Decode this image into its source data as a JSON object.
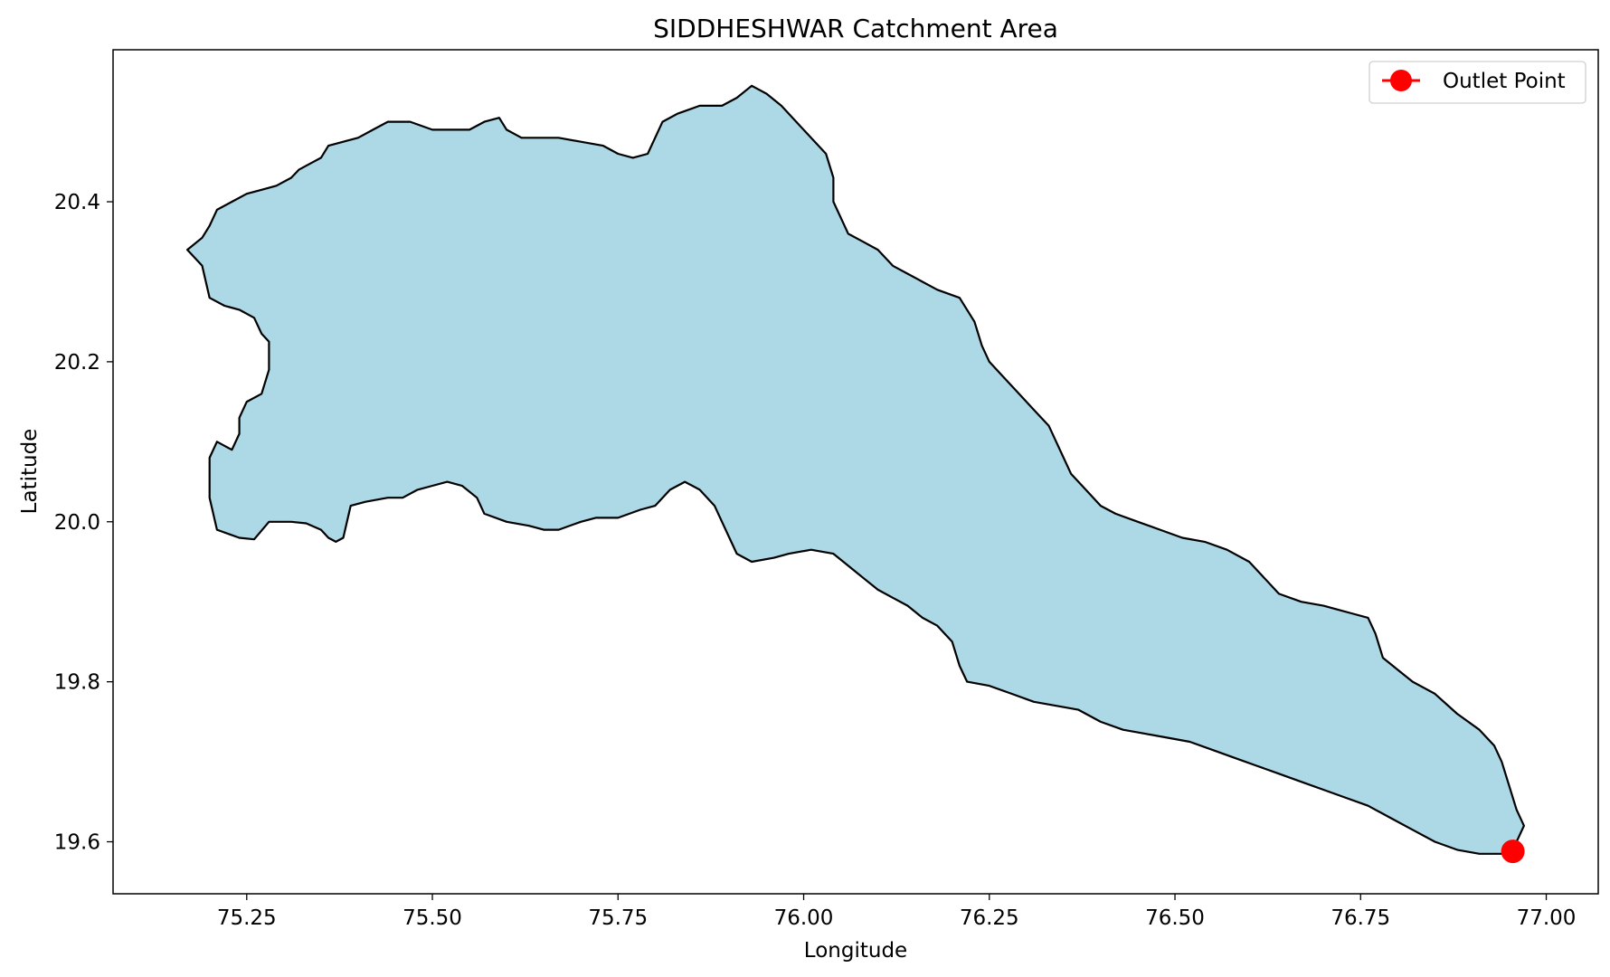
{
  "chart_data": {
    "type": "map",
    "title": "SIDDHESHWAR Catchment Area",
    "xlabel": "Longitude",
    "ylabel": "Latitude",
    "xlim": [
      75.07,
      77.07
    ],
    "ylim": [
      19.535,
      20.59
    ],
    "x_ticks": [
      75.25,
      75.5,
      75.75,
      76.0,
      76.25,
      76.5,
      76.75,
      77.0
    ],
    "x_tick_labels": [
      "75.25",
      "75.50",
      "75.75",
      "76.00",
      "76.25",
      "76.50",
      "76.75",
      "77.00"
    ],
    "y_ticks": [
      19.6,
      19.8,
      20.0,
      20.2,
      20.4
    ],
    "y_tick_labels": [
      "19.6",
      "19.8",
      "20.0",
      "20.2",
      "20.4"
    ],
    "grid": false,
    "legend_position": "top-right",
    "colors": {
      "catchment_fill": "#add8e6",
      "catchment_edge": "#000000",
      "outlet": "#ff0000"
    },
    "series": [
      {
        "name": "catchment",
        "kind": "polygon",
        "points": [
          [
            75.17,
            20.34
          ],
          [
            75.19,
            20.32
          ],
          [
            75.2,
            20.28
          ],
          [
            75.22,
            20.27
          ],
          [
            75.24,
            20.265
          ],
          [
            75.26,
            20.255
          ],
          [
            75.27,
            20.235
          ],
          [
            75.28,
            20.225
          ],
          [
            75.28,
            20.19
          ],
          [
            75.27,
            20.16
          ],
          [
            75.25,
            20.15
          ],
          [
            75.24,
            20.13
          ],
          [
            75.24,
            20.11
          ],
          [
            75.23,
            20.09
          ],
          [
            75.21,
            20.1
          ],
          [
            75.2,
            20.08
          ],
          [
            75.2,
            20.03
          ],
          [
            75.21,
            19.99
          ],
          [
            75.24,
            19.98
          ],
          [
            75.26,
            19.978
          ],
          [
            75.28,
            20.0
          ],
          [
            75.31,
            20.0
          ],
          [
            75.33,
            19.998
          ],
          [
            75.35,
            19.99
          ],
          [
            75.36,
            19.98
          ],
          [
            75.37,
            19.975
          ],
          [
            75.38,
            19.98
          ],
          [
            75.39,
            20.02
          ],
          [
            75.41,
            20.025
          ],
          [
            75.44,
            20.03
          ],
          [
            75.46,
            20.03
          ],
          [
            75.48,
            20.04
          ],
          [
            75.5,
            20.045
          ],
          [
            75.52,
            20.05
          ],
          [
            75.54,
            20.045
          ],
          [
            75.56,
            20.03
          ],
          [
            75.57,
            20.01
          ],
          [
            75.6,
            20.0
          ],
          [
            75.63,
            19.995
          ],
          [
            75.65,
            19.99
          ],
          [
            75.67,
            19.99
          ],
          [
            75.7,
            20.0
          ],
          [
            75.72,
            20.005
          ],
          [
            75.75,
            20.005
          ],
          [
            75.78,
            20.015
          ],
          [
            75.8,
            20.02
          ],
          [
            75.82,
            20.04
          ],
          [
            75.84,
            20.05
          ],
          [
            75.86,
            20.04
          ],
          [
            75.88,
            20.02
          ],
          [
            75.89,
            20.0
          ],
          [
            75.9,
            19.98
          ],
          [
            75.91,
            19.96
          ],
          [
            75.93,
            19.95
          ],
          [
            75.96,
            19.955
          ],
          [
            75.98,
            19.96
          ],
          [
            76.01,
            19.965
          ],
          [
            76.04,
            19.96
          ],
          [
            76.06,
            19.945
          ],
          [
            76.08,
            19.93
          ],
          [
            76.1,
            19.915
          ],
          [
            76.12,
            19.905
          ],
          [
            76.14,
            19.895
          ],
          [
            76.16,
            19.88
          ],
          [
            76.18,
            19.87
          ],
          [
            76.2,
            19.85
          ],
          [
            76.21,
            19.82
          ],
          [
            76.22,
            19.8
          ],
          [
            76.25,
            19.795
          ],
          [
            76.28,
            19.785
          ],
          [
            76.31,
            19.775
          ],
          [
            76.34,
            19.77
          ],
          [
            76.37,
            19.765
          ],
          [
            76.4,
            19.75
          ],
          [
            76.43,
            19.74
          ],
          [
            76.46,
            19.735
          ],
          [
            76.49,
            19.73
          ],
          [
            76.52,
            19.725
          ],
          [
            76.55,
            19.715
          ],
          [
            76.58,
            19.705
          ],
          [
            76.61,
            19.695
          ],
          [
            76.64,
            19.685
          ],
          [
            76.67,
            19.675
          ],
          [
            76.7,
            19.665
          ],
          [
            76.73,
            19.655
          ],
          [
            76.76,
            19.645
          ],
          [
            76.79,
            19.63
          ],
          [
            76.82,
            19.615
          ],
          [
            76.85,
            19.6
          ],
          [
            76.88,
            19.59
          ],
          [
            76.91,
            19.585
          ],
          [
            76.94,
            19.585
          ],
          [
            76.96,
            19.6
          ],
          [
            76.97,
            19.62
          ],
          [
            76.96,
            19.64
          ],
          [
            76.95,
            19.67
          ],
          [
            76.94,
            19.7
          ],
          [
            76.93,
            19.72
          ],
          [
            76.91,
            19.74
          ],
          [
            76.88,
            19.76
          ],
          [
            76.85,
            19.785
          ],
          [
            76.82,
            19.8
          ],
          [
            76.8,
            19.815
          ],
          [
            76.78,
            19.83
          ],
          [
            76.77,
            19.86
          ],
          [
            76.76,
            19.88
          ],
          [
            76.74,
            19.885
          ],
          [
            76.72,
            19.89
          ],
          [
            76.7,
            19.895
          ],
          [
            76.67,
            19.9
          ],
          [
            76.64,
            19.91
          ],
          [
            76.62,
            19.93
          ],
          [
            76.6,
            19.95
          ],
          [
            76.57,
            19.965
          ],
          [
            76.54,
            19.975
          ],
          [
            76.51,
            19.98
          ],
          [
            76.48,
            19.99
          ],
          [
            76.45,
            20.0
          ],
          [
            76.42,
            20.01
          ],
          [
            76.4,
            20.02
          ],
          [
            76.38,
            20.04
          ],
          [
            76.36,
            20.06
          ],
          [
            76.35,
            20.08
          ],
          [
            76.34,
            20.1
          ],
          [
            76.33,
            20.12
          ],
          [
            76.31,
            20.14
          ],
          [
            76.29,
            20.16
          ],
          [
            76.27,
            20.18
          ],
          [
            76.25,
            20.2
          ],
          [
            76.24,
            20.22
          ],
          [
            76.23,
            20.25
          ],
          [
            76.21,
            20.28
          ],
          [
            76.18,
            20.29
          ],
          [
            76.16,
            20.3
          ],
          [
            76.14,
            20.31
          ],
          [
            76.12,
            20.32
          ],
          [
            76.1,
            20.34
          ],
          [
            76.08,
            20.35
          ],
          [
            76.06,
            20.36
          ],
          [
            76.05,
            20.38
          ],
          [
            76.04,
            20.4
          ],
          [
            76.04,
            20.43
          ],
          [
            76.03,
            20.46
          ],
          [
            76.01,
            20.48
          ],
          [
            75.99,
            20.5
          ],
          [
            75.97,
            20.52
          ],
          [
            75.95,
            20.535
          ],
          [
            75.93,
            20.545
          ],
          [
            75.91,
            20.53
          ],
          [
            75.89,
            20.52
          ],
          [
            75.86,
            20.52
          ],
          [
            75.83,
            20.51
          ],
          [
            75.81,
            20.5
          ],
          [
            75.8,
            20.48
          ],
          [
            75.79,
            20.46
          ],
          [
            75.77,
            20.455
          ],
          [
            75.75,
            20.46
          ],
          [
            75.73,
            20.47
          ],
          [
            75.7,
            20.475
          ],
          [
            75.67,
            20.48
          ],
          [
            75.65,
            20.48
          ],
          [
            75.62,
            20.48
          ],
          [
            75.6,
            20.49
          ],
          [
            75.59,
            20.505
          ],
          [
            75.57,
            20.5
          ],
          [
            75.55,
            20.49
          ],
          [
            75.52,
            20.49
          ],
          [
            75.5,
            20.49
          ],
          [
            75.47,
            20.5
          ],
          [
            75.44,
            20.5
          ],
          [
            75.42,
            20.49
          ],
          [
            75.4,
            20.48
          ],
          [
            75.38,
            20.475
          ],
          [
            75.36,
            20.47
          ],
          [
            75.35,
            20.455
          ],
          [
            75.34,
            20.45
          ],
          [
            75.33,
            20.445
          ],
          [
            75.32,
            20.44
          ],
          [
            75.31,
            20.43
          ],
          [
            75.29,
            20.42
          ],
          [
            75.27,
            20.415
          ],
          [
            75.25,
            20.41
          ],
          [
            75.23,
            20.4
          ],
          [
            75.21,
            20.39
          ],
          [
            75.2,
            20.37
          ],
          [
            75.19,
            20.355
          ]
        ]
      },
      {
        "name": "Outlet Point",
        "kind": "point",
        "x": 76.955,
        "y": 19.588
      }
    ]
  }
}
